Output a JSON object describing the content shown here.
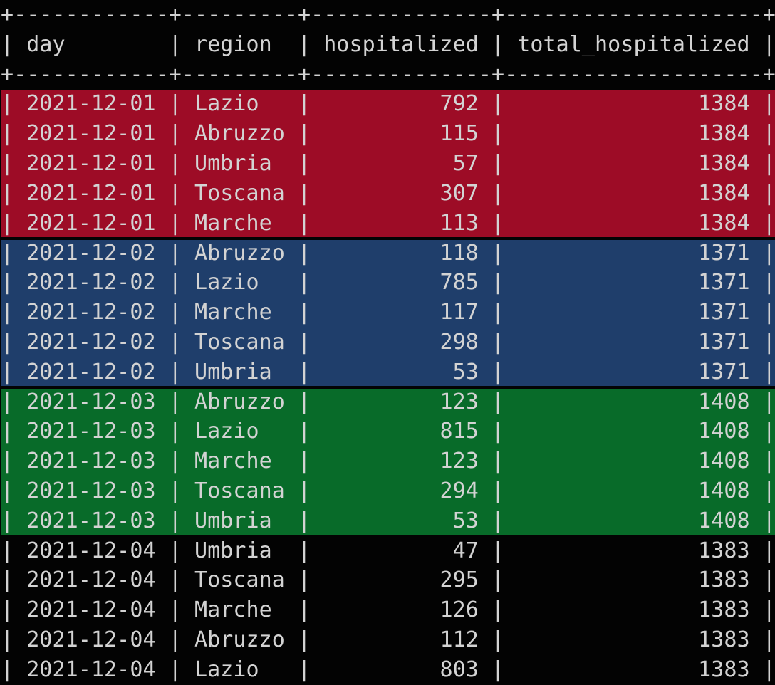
{
  "app": {
    "kind": "terminal-table-output",
    "description_visible_columns": [
      "day",
      "region",
      "hospitalized",
      "total_hospitalized"
    ]
  },
  "colors": {
    "background": "#030303",
    "text": "#d3d3d3",
    "highlight_2021_12_01": "#9d0c26",
    "highlight_2021_12_02": "#1f3e6b",
    "highlight_2021_12_03": "#086b29",
    "highlight_2021_12_04": null
  },
  "table": {
    "border_line": "+------------+---------+--------------+--------------------+",
    "header_line": "| day        | region  | hospitalized | total_hospitalized |",
    "columns": [
      "day",
      "region",
      "hospitalized",
      "total_hospitalized"
    ],
    "format": {
      "day_pad": 11,
      "region_pad": 8,
      "hospitalized_pad": 13,
      "total_pad": 19
    },
    "groups": [
      {
        "day": "2021-12-01",
        "highlight": "#9d0c26",
        "rows": [
          {
            "day": "2021-12-01",
            "region": "Lazio",
            "hospitalized": 792,
            "total_hospitalized": 1384
          },
          {
            "day": "2021-12-01",
            "region": "Abruzzo",
            "hospitalized": 115,
            "total_hospitalized": 1384
          },
          {
            "day": "2021-12-01",
            "region": "Umbria",
            "hospitalized": 57,
            "total_hospitalized": 1384
          },
          {
            "day": "2021-12-01",
            "region": "Toscana",
            "hospitalized": 307,
            "total_hospitalized": 1384
          },
          {
            "day": "2021-12-01",
            "region": "Marche",
            "hospitalized": 113,
            "total_hospitalized": 1384
          }
        ]
      },
      {
        "day": "2021-12-02",
        "highlight": "#1f3e6b",
        "rows": [
          {
            "day": "2021-12-02",
            "region": "Abruzzo",
            "hospitalized": 118,
            "total_hospitalized": 1371
          },
          {
            "day": "2021-12-02",
            "region": "Lazio",
            "hospitalized": 785,
            "total_hospitalized": 1371
          },
          {
            "day": "2021-12-02",
            "region": "Marche",
            "hospitalized": 117,
            "total_hospitalized": 1371
          },
          {
            "day": "2021-12-02",
            "region": "Toscana",
            "hospitalized": 298,
            "total_hospitalized": 1371
          },
          {
            "day": "2021-12-02",
            "region": "Umbria",
            "hospitalized": 53,
            "total_hospitalized": 1371
          }
        ]
      },
      {
        "day": "2021-12-03",
        "highlight": "#086b29",
        "rows": [
          {
            "day": "2021-12-03",
            "region": "Abruzzo",
            "hospitalized": 123,
            "total_hospitalized": 1408
          },
          {
            "day": "2021-12-03",
            "region": "Lazio",
            "hospitalized": 815,
            "total_hospitalized": 1408
          },
          {
            "day": "2021-12-03",
            "region": "Marche",
            "hospitalized": 123,
            "total_hospitalized": 1408
          },
          {
            "day": "2021-12-03",
            "region": "Toscana",
            "hospitalized": 294,
            "total_hospitalized": 1408
          },
          {
            "day": "2021-12-03",
            "region": "Umbria",
            "hospitalized": 53,
            "total_hospitalized": 1408
          }
        ]
      },
      {
        "day": "2021-12-04",
        "highlight": null,
        "rows": [
          {
            "day": "2021-12-04",
            "region": "Umbria",
            "hospitalized": 47,
            "total_hospitalized": 1383
          },
          {
            "day": "2021-12-04",
            "region": "Toscana",
            "hospitalized": 295,
            "total_hospitalized": 1383
          },
          {
            "day": "2021-12-04",
            "region": "Marche",
            "hospitalized": 126,
            "total_hospitalized": 1383
          },
          {
            "day": "2021-12-04",
            "region": "Abruzzo",
            "hospitalized": 112,
            "total_hospitalized": 1383
          },
          {
            "day": "2021-12-04",
            "region": "Lazio",
            "hospitalized": 803,
            "total_hospitalized": 1383
          }
        ]
      }
    ]
  }
}
